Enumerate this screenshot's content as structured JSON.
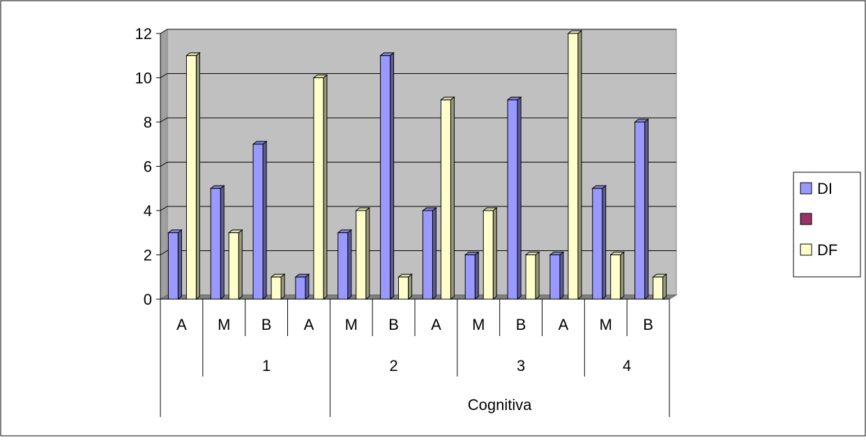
{
  "chart_data": {
    "type": "bar",
    "categories": [
      "A",
      "M",
      "B",
      "A",
      "M",
      "B",
      "A",
      "M",
      "B",
      "A",
      "M",
      "B"
    ],
    "group_labels": [
      "",
      "1",
      "2",
      "3",
      "4"
    ],
    "outer_label": "Cognitiva",
    "series": [
      {
        "name": "DI",
        "color": "#9999ff",
        "values": [
          3,
          5,
          7,
          1,
          3,
          11,
          4,
          2,
          9,
          2,
          5,
          8
        ]
      },
      {
        "name": "",
        "color": "#993366",
        "values": [
          null,
          null,
          null,
          null,
          null,
          null,
          null,
          null,
          null,
          null,
          null,
          null
        ]
      },
      {
        "name": "DF",
        "color": "#ffffcc",
        "values": [
          11,
          3,
          1,
          10,
          4,
          1,
          9,
          4,
          2,
          12,
          2,
          1
        ]
      }
    ],
    "ylim": [
      0,
      12
    ],
    "yticks": [
      0,
      2,
      4,
      6,
      8,
      10,
      12
    ],
    "grid": true,
    "legend_position": "right",
    "plot_background": "#c0c0c0"
  }
}
